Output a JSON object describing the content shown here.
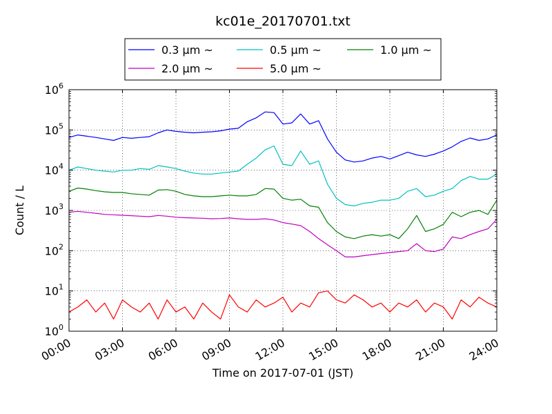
{
  "chart_data": {
    "type": "line",
    "title": "kc01e_20170701.txt",
    "xlabel": "Time on 2017-07-01 (JST)",
    "ylabel": "Count / L",
    "x_ticks": [
      "00:00",
      "03:00",
      "06:00",
      "09:00",
      "12:00",
      "15:00",
      "18:00",
      "21:00",
      "24:00"
    ],
    "x_tick_hours": [
      0,
      3,
      6,
      9,
      12,
      15,
      18,
      21,
      24
    ],
    "xlim": [
      0,
      24
    ],
    "y_scale": "log",
    "ylim": [
      1,
      1000000
    ],
    "y_ticks": [
      1,
      10,
      100,
      1000,
      10000,
      100000,
      1000000
    ],
    "y_tick_labels": [
      {
        "base": "10",
        "exp": "0"
      },
      {
        "base": "10",
        "exp": "1"
      },
      {
        "base": "10",
        "exp": "2"
      },
      {
        "base": "10",
        "exp": "3"
      },
      {
        "base": "10",
        "exp": "4"
      },
      {
        "base": "10",
        "exp": "5"
      },
      {
        "base": "10",
        "exp": "6"
      }
    ],
    "grid": true,
    "legend_position": "top-center",
    "series": [
      {
        "name": "0.3 μm ~",
        "color": "#0000ff",
        "hours": [
          0,
          0.5,
          1,
          1.5,
          2,
          2.5,
          3,
          3.5,
          4,
          4.5,
          5,
          5.5,
          6,
          6.5,
          7,
          7.5,
          8,
          8.5,
          9,
          9.5,
          10,
          10.5,
          11,
          11.5,
          12,
          12.5,
          13,
          13.5,
          14,
          14.5,
          15,
          15.5,
          16,
          16.5,
          17,
          17.5,
          18,
          18.5,
          19,
          19.5,
          20,
          20.5,
          21,
          21.5,
          22,
          22.5,
          23,
          23.5,
          24
        ],
        "values": [
          65000,
          75000,
          70000,
          65000,
          60000,
          55000,
          65000,
          62000,
          65000,
          68000,
          85000,
          100000,
          92000,
          88000,
          85000,
          88000,
          90000,
          95000,
          105000,
          110000,
          160000,
          200000,
          280000,
          270000,
          140000,
          150000,
          250000,
          140000,
          170000,
          60000,
          28000,
          18000,
          16000,
          17000,
          20000,
          22000,
          19000,
          23000,
          28000,
          24000,
          22000,
          25000,
          30000,
          38000,
          52000,
          63000,
          55000,
          60000,
          75000
        ]
      },
      {
        "name": "0.5 μm ~",
        "color": "#00bfbf",
        "hours": [
          0,
          0.5,
          1,
          1.5,
          2,
          2.5,
          3,
          3.5,
          4,
          4.5,
          5,
          5.5,
          6,
          6.5,
          7,
          7.5,
          8,
          8.5,
          9,
          9.5,
          10,
          10.5,
          11,
          11.5,
          12,
          12.5,
          13,
          13.5,
          14,
          14.5,
          15,
          15.5,
          16,
          16.5,
          17,
          17.5,
          18,
          18.5,
          19,
          19.5,
          20,
          20.5,
          21,
          21.5,
          22,
          22.5,
          23,
          23.5,
          24
        ],
        "values": [
          10000,
          12000,
          11000,
          10000,
          9500,
          9000,
          10000,
          10000,
          11000,
          10500,
          13000,
          12000,
          11000,
          9500,
          8500,
          8000,
          8000,
          8500,
          9000,
          9500,
          14000,
          20000,
          32000,
          40000,
          14000,
          13000,
          30000,
          14000,
          17000,
          4500,
          2000,
          1400,
          1300,
          1500,
          1600,
          1800,
          1800,
          2000,
          3000,
          3500,
          2200,
          2400,
          3000,
          3500,
          5500,
          7000,
          6000,
          6000,
          8000
        ]
      },
      {
        "name": "1.0 μm ~",
        "color": "#008000",
        "hours": [
          0,
          0.5,
          1,
          1.5,
          2,
          2.5,
          3,
          3.5,
          4,
          4.5,
          5,
          5.5,
          6,
          6.5,
          7,
          7.5,
          8,
          8.5,
          9,
          9.5,
          10,
          10.5,
          11,
          11.5,
          12,
          12.5,
          13,
          13.5,
          14,
          14.5,
          15,
          15.5,
          16,
          16.5,
          17,
          17.5,
          18,
          18.5,
          19,
          19.5,
          20,
          20.5,
          21,
          21.5,
          22,
          22.5,
          23,
          23.5,
          24
        ],
        "values": [
          3000,
          3600,
          3400,
          3100,
          2900,
          2800,
          2800,
          2600,
          2500,
          2400,
          3200,
          3300,
          3000,
          2500,
          2300,
          2200,
          2200,
          2300,
          2400,
          2300,
          2300,
          2500,
          3500,
          3400,
          2000,
          1800,
          1900,
          1300,
          1200,
          500,
          300,
          220,
          200,
          230,
          250,
          230,
          250,
          200,
          350,
          750,
          300,
          350,
          450,
          900,
          700,
          900,
          1000,
          800,
          1800
        ]
      },
      {
        "name": "2.0 μm ~",
        "color": "#bf00bf",
        "hours": [
          0,
          0.5,
          1,
          1.5,
          2,
          2.5,
          3,
          3.5,
          4,
          4.5,
          5,
          5.5,
          6,
          6.5,
          7,
          7.5,
          8,
          8.5,
          9,
          9.5,
          10,
          10.5,
          11,
          11.5,
          12,
          12.5,
          13,
          13.5,
          14,
          14.5,
          15,
          15.5,
          16,
          16.5,
          17,
          17.5,
          18,
          18.5,
          19,
          19.5,
          20,
          20.5,
          21,
          21.5,
          22,
          22.5,
          23,
          23.5,
          24
        ],
        "values": [
          900,
          950,
          900,
          850,
          800,
          780,
          760,
          740,
          720,
          700,
          750,
          720,
          680,
          660,
          650,
          640,
          620,
          630,
          650,
          620,
          600,
          600,
          620,
          580,
          500,
          460,
          420,
          300,
          200,
          140,
          100,
          70,
          70,
          75,
          80,
          85,
          90,
          95,
          100,
          150,
          100,
          95,
          110,
          220,
          200,
          250,
          300,
          350,
          600
        ]
      },
      {
        "name": "5.0 μm ~",
        "color": "#ff0000",
        "hours": [
          0,
          0.5,
          1,
          1.5,
          2,
          2.5,
          3,
          3.5,
          4,
          4.5,
          5,
          5.5,
          6,
          6.5,
          7,
          7.5,
          8,
          8.5,
          9,
          9.5,
          10,
          10.5,
          11,
          11.5,
          12,
          12.5,
          13,
          13.5,
          14,
          14.5,
          15,
          15.5,
          16,
          16.5,
          17,
          17.5,
          18,
          18.5,
          19,
          19.5,
          20,
          20.5,
          21,
          21.5,
          22,
          22.5,
          23,
          23.5,
          24
        ],
        "values": [
          3,
          4,
          6,
          3,
          5,
          2,
          6,
          4,
          3,
          5,
          2,
          6,
          3,
          4,
          2,
          5,
          3,
          2,
          8,
          4,
          3,
          6,
          4,
          5,
          7,
          3,
          5,
          4,
          9,
          10,
          6,
          5,
          8,
          6,
          4,
          5,
          3,
          5,
          4,
          6,
          3,
          5,
          4,
          2,
          6,
          4,
          7,
          5,
          4
        ]
      }
    ]
  }
}
